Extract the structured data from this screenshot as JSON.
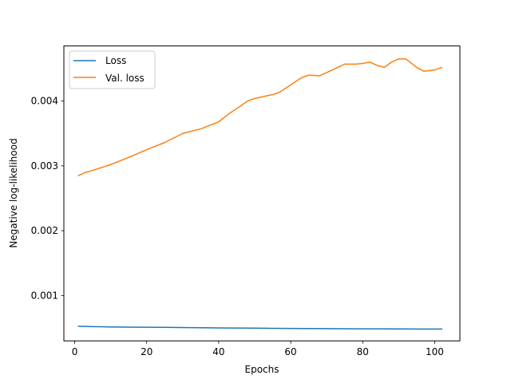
{
  "chart_data": {
    "type": "line",
    "title": "",
    "xlabel": "Epochs",
    "ylabel": "Negative log-likelihood",
    "xlim": [
      -3,
      107
    ],
    "ylim": [
      0.0003,
      0.00485
    ],
    "xticks": [
      0,
      20,
      40,
      60,
      80,
      100
    ],
    "xtick_labels": [
      "0",
      "20",
      "40",
      "60",
      "80",
      "100"
    ],
    "yticks": [
      0.001,
      0.002,
      0.003,
      0.004
    ],
    "ytick_labels": [
      "0.001",
      "0.002",
      "0.003",
      "0.004"
    ],
    "grid": false,
    "legend_position": "top-left",
    "series": [
      {
        "name": "Loss",
        "color": "#1f77b4",
        "x": [
          1,
          5,
          10,
          15,
          20,
          25,
          30,
          35,
          40,
          45,
          50,
          55,
          60,
          65,
          70,
          75,
          80,
          85,
          90,
          95,
          100,
          102
        ],
        "values": [
          0.000525,
          0.00052,
          0.000515,
          0.000512,
          0.00051,
          0.000508,
          0.000505,
          0.000503,
          0.0005,
          0.000498,
          0.000496,
          0.000494,
          0.000492,
          0.00049,
          0.000488,
          0.000487,
          0.000486,
          0.000485,
          0.000484,
          0.000483,
          0.000482,
          0.000482
        ]
      },
      {
        "name": "Val. loss",
        "color": "#ff7f0e",
        "x": [
          1,
          3,
          5,
          10,
          15,
          20,
          25,
          30,
          35,
          40,
          43,
          46,
          48,
          50,
          55,
          57,
          60,
          63,
          65,
          68,
          70,
          72,
          75,
          78,
          80,
          82,
          84,
          86,
          88,
          90,
          92,
          95,
          97,
          100,
          102
        ],
        "values": [
          0.00285,
          0.0029,
          0.00293,
          0.00302,
          0.00313,
          0.00325,
          0.00336,
          0.0035,
          0.00357,
          0.00368,
          0.00381,
          0.00392,
          0.004,
          0.00404,
          0.0041,
          0.00414,
          0.00425,
          0.00436,
          0.0044,
          0.00439,
          0.00444,
          0.00449,
          0.00457,
          0.00457,
          0.00458,
          0.0046,
          0.00455,
          0.00452,
          0.0046,
          0.00465,
          0.00465,
          0.00452,
          0.00446,
          0.00448,
          0.00452
        ]
      }
    ]
  }
}
